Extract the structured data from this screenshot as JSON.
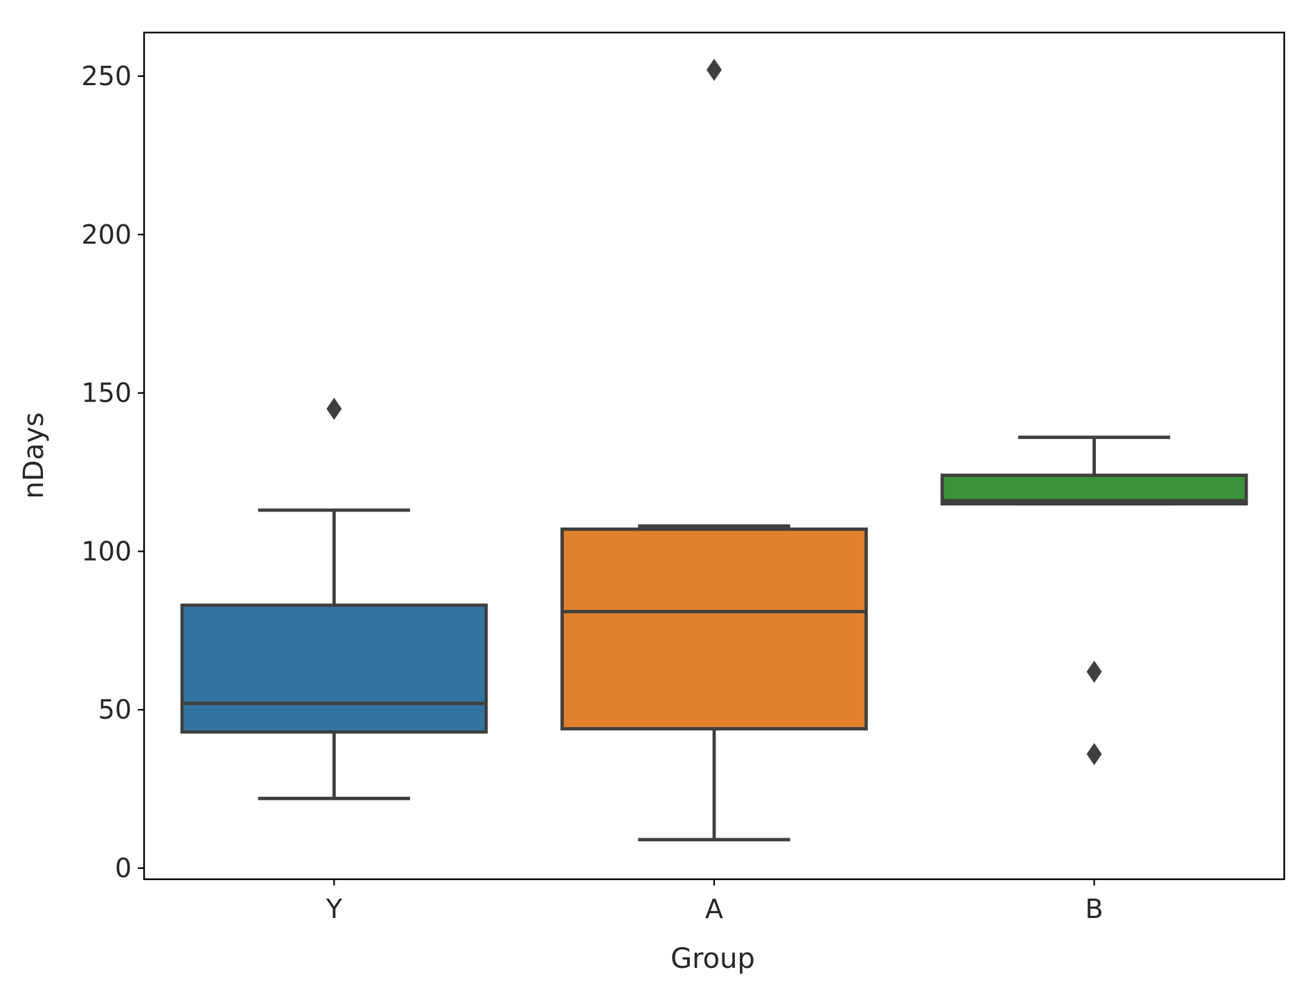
{
  "chart_data": {
    "type": "box",
    "title": "",
    "xlabel": "Group",
    "ylabel": "nDays",
    "ylim": [
      -4,
      263
    ],
    "yticks": [
      0,
      50,
      100,
      150,
      200,
      250
    ],
    "categories": [
      "Y",
      "A",
      "B"
    ],
    "grid": false,
    "legend": "none",
    "line_color": "#3f3f3f",
    "boxes": [
      {
        "category": "Y",
        "color": "#3274a1",
        "whisker_low": 22,
        "q1": 43,
        "median": 52,
        "q3": 83,
        "whisker_high": 113,
        "outliers": [
          145
        ]
      },
      {
        "category": "A",
        "color": "#e1812c",
        "whisker_low": 9,
        "q1": 44,
        "median": 81,
        "q3": 107,
        "whisker_high": 108,
        "outliers": [
          252
        ]
      },
      {
        "category": "B",
        "color": "#3a923a",
        "whisker_low": 115,
        "q1": 115,
        "median": 116,
        "q3": 124,
        "whisker_high": 136,
        "outliers": [
          62,
          36
        ]
      }
    ]
  }
}
